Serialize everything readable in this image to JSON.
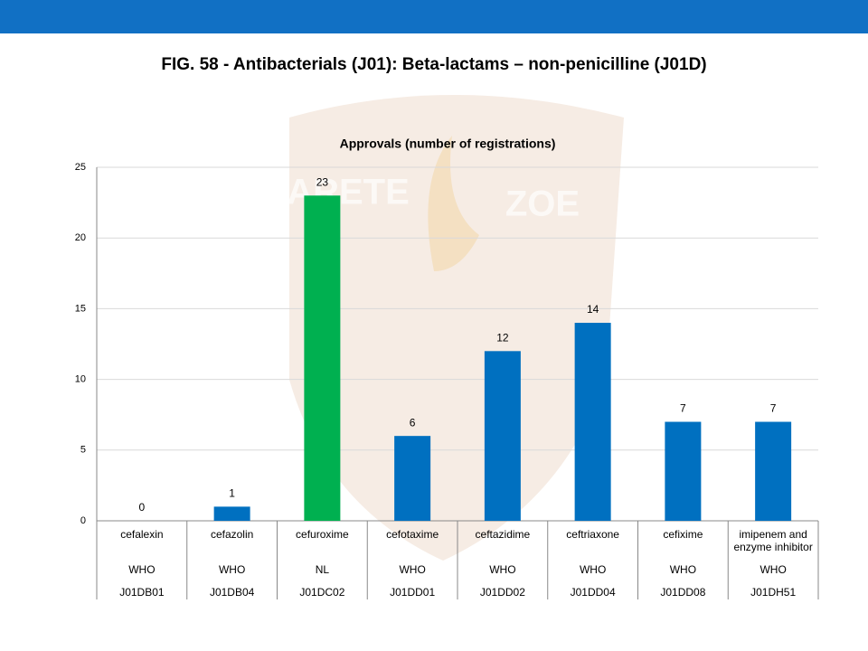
{
  "chart_data": {
    "type": "bar",
    "title": "FIG. 58 - Antibacterials (J01): Beta-lactams – non-penicilline (J01D)",
    "subtitle": "Approvals (number of registrations)",
    "watermark": [
      "ARETE",
      "ZOE"
    ],
    "categories": [
      "cefalexin",
      "cefazolin",
      "cefuroxime",
      "cefotaxime",
      "ceftazidime",
      "ceftriaxone",
      "cefixime",
      "imipenem and enzyme inhibitor"
    ],
    "category_sources": [
      "WHO",
      "WHO",
      "NL",
      "WHO",
      "WHO",
      "WHO",
      "WHO",
      "WHO"
    ],
    "category_codes": [
      "J01DB01",
      "J01DB04",
      "J01DC02",
      "J01DD01",
      "J01DD02",
      "J01DD04",
      "J01DD08",
      "J01DH51"
    ],
    "values": [
      0,
      1,
      23,
      6,
      12,
      14,
      7,
      7
    ],
    "colors": [
      "#0070c0",
      "#0070c0",
      "#00b050",
      "#0070c0",
      "#0070c0",
      "#0070c0",
      "#0070c0",
      "#0070c0"
    ],
    "ylim": [
      0,
      25
    ],
    "yticks": [
      0,
      5,
      10,
      15,
      20,
      25
    ],
    "grid": true
  }
}
